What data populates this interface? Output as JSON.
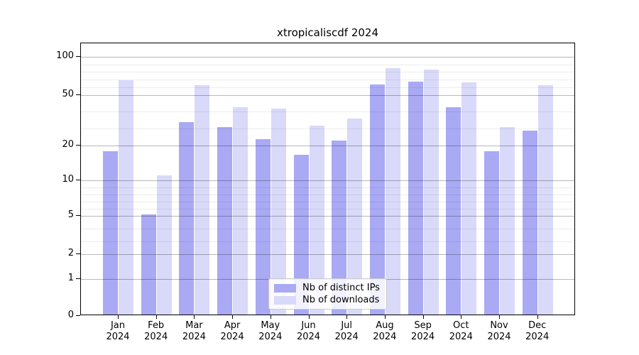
{
  "chart_data": {
    "type": "bar",
    "title": "xtropicaliscdf 2024",
    "categories": [
      "Jan 2024",
      "Feb 2024",
      "Mar 2024",
      "Apr 2024",
      "May 2024",
      "Jun 2024",
      "Jul 2024",
      "Aug 2024",
      "Sep 2024",
      "Oct 2024",
      "Nov 2024",
      "Dec 2024"
    ],
    "months": [
      "Jan",
      "Feb",
      "Mar",
      "Apr",
      "May",
      "Jun",
      "Jul",
      "Aug",
      "Sep",
      "Oct",
      "Nov",
      "Dec"
    ],
    "year": "2024",
    "series": [
      {
        "name": "Nb of distinct IPs",
        "color": "#a9a9f4",
        "values": [
          18,
          5,
          33,
          30,
          23,
          17,
          22,
          62,
          66,
          42,
          18,
          28
        ]
      },
      {
        "name": "Nb of downloads",
        "color": "#d9d9f9",
        "values": [
          67,
          11,
          61,
          42,
          41,
          31,
          35,
          83,
          81,
          65,
          30,
          61
        ]
      }
    ],
    "y_ticks": [
      0,
      1,
      2,
      5,
      10,
      20,
      50,
      100
    ],
    "y_minor_ticks": [
      3,
      4,
      6,
      7,
      8,
      9,
      30,
      40,
      60,
      70,
      80,
      90
    ],
    "yscale": "piecewise-linear between ticks 0,1,2,5,10,20,50,100",
    "ylim": [
      0,
      120
    ],
    "xlabel": "",
    "ylabel": "",
    "grid": true,
    "legend_position": "lower center",
    "colors": {
      "axis": "#000000",
      "grid_major": "#b5b5b5",
      "grid_minor": "#ececec",
      "background": "#ffffff"
    }
  }
}
